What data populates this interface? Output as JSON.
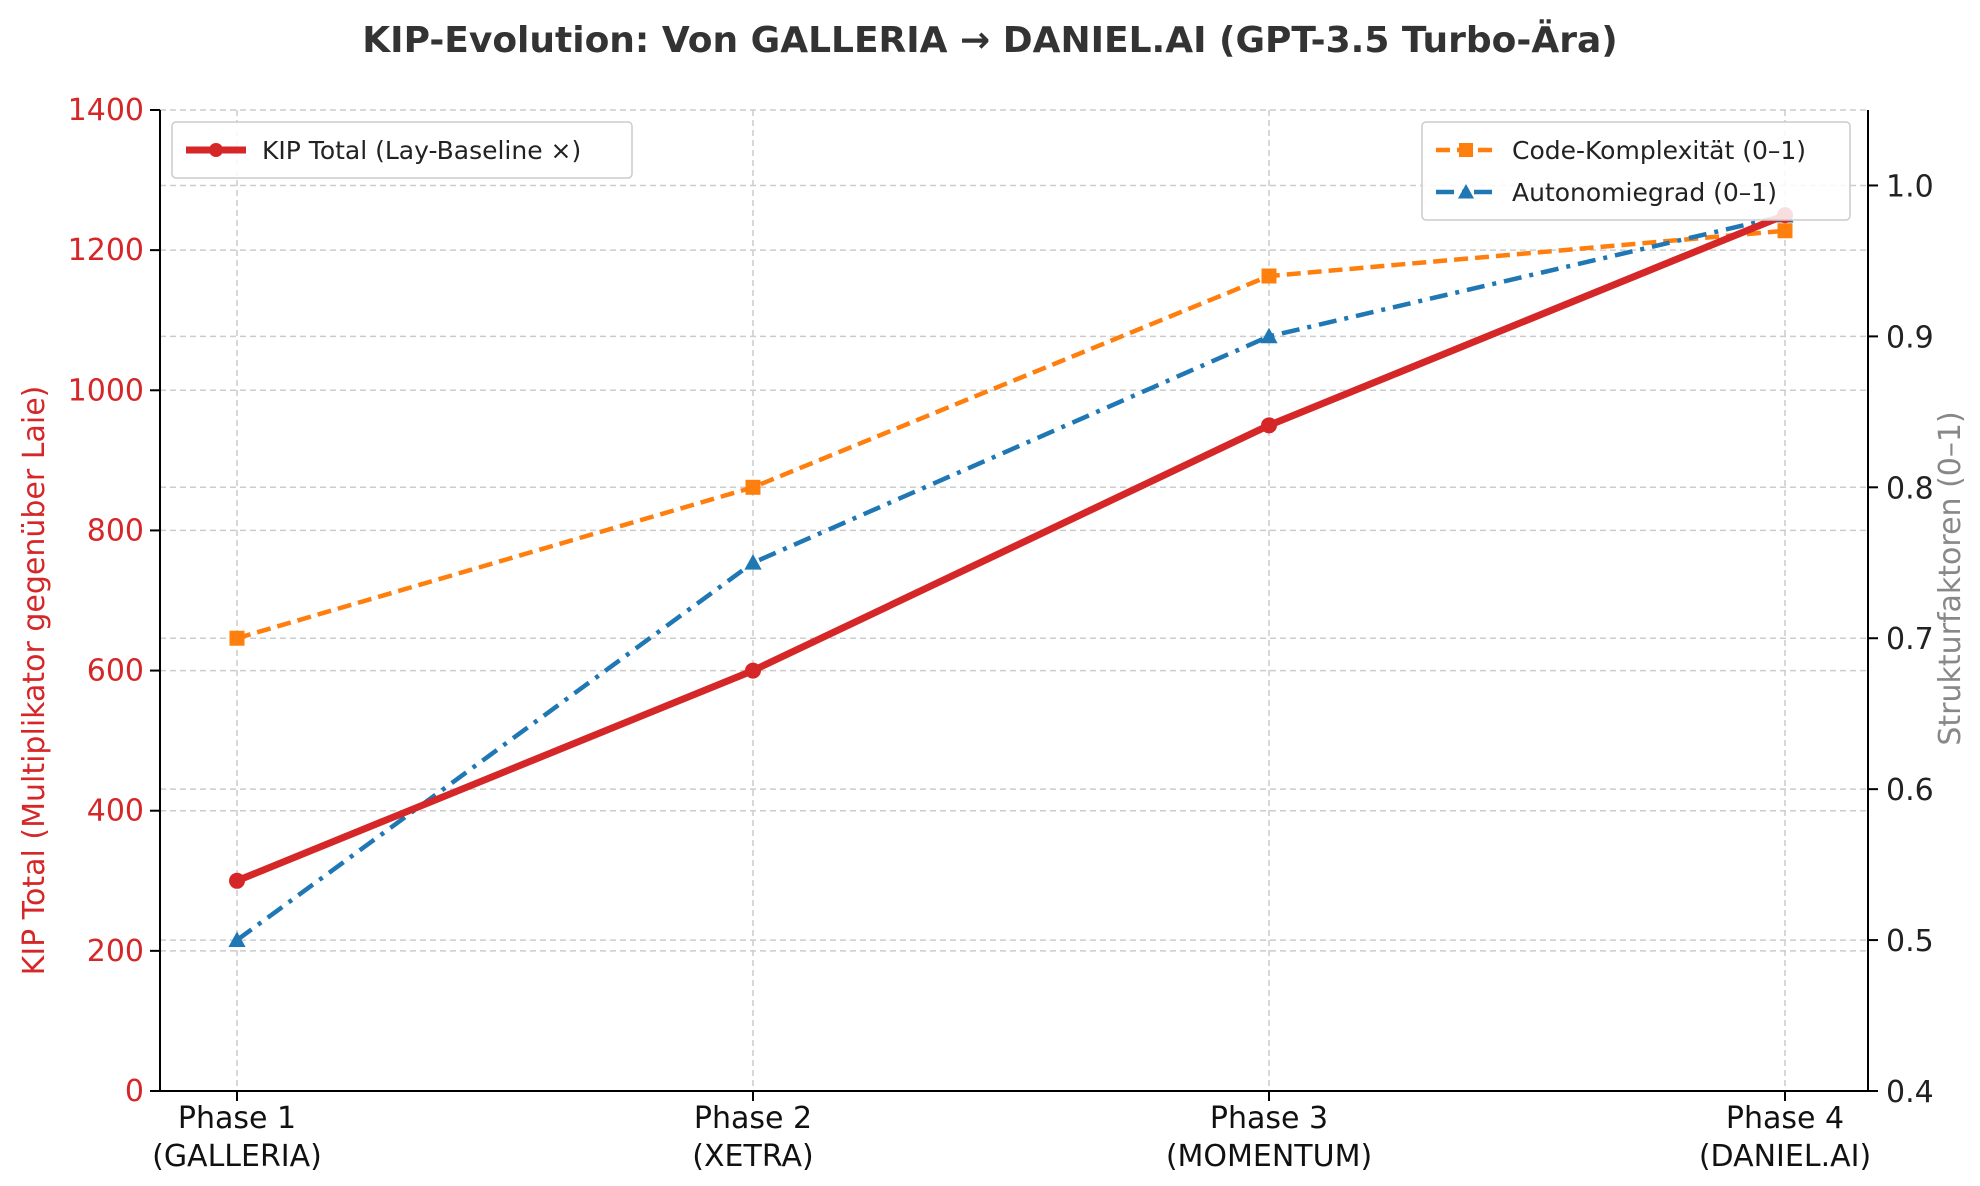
{
  "chart_data": {
    "type": "line",
    "title": "KIP-Evolution: Von GALLERIA → DANIEL.AI (GPT-3.5 Turbo-Ära)",
    "categories": [
      [
        "Phase 1",
        "(GALLERIA)"
      ],
      [
        "Phase 2",
        "(XETRA)"
      ],
      [
        "Phase 3",
        "(MOMENTUM)"
      ],
      [
        "Phase 4",
        "(DANIEL.AI)"
      ]
    ],
    "ylabel_left": "KIP Total (Multiplikator gegenüber Laie)",
    "ylabel_right": "Strukturfaktoren (0–1)",
    "ylim_left": [
      0,
      1400
    ],
    "yticks_left": [
      "0",
      "200",
      "400",
      "600",
      "800",
      "1000",
      "1200",
      "1400"
    ],
    "ylim_right": [
      0.4,
      1.05
    ],
    "yticks_right": [
      "0.4",
      "0.5",
      "0.6",
      "0.7",
      "0.8",
      "0.9",
      "1.0"
    ],
    "grid": true,
    "series_left": [
      {
        "name": "KIP Total (Lay-Baseline ×)",
        "values": [
          300,
          600,
          950,
          1250
        ],
        "color": "#d62728",
        "marker": "circle",
        "linestyle": "solid"
      }
    ],
    "series_right": [
      {
        "name": "Code-Komplexität (0–1)",
        "values": [
          0.7,
          0.8,
          0.94,
          0.97
        ],
        "color": "#ff7f0e",
        "marker": "square",
        "linestyle": "dashed"
      },
      {
        "name": "Autonomiegrad (0–1)",
        "values": [
          0.5,
          0.75,
          0.9,
          0.98
        ],
        "color": "#1f77b4",
        "marker": "triangle",
        "linestyle": "dashdot"
      }
    ],
    "legend_left_position": "top-left",
    "legend_right_position": "top-right"
  }
}
